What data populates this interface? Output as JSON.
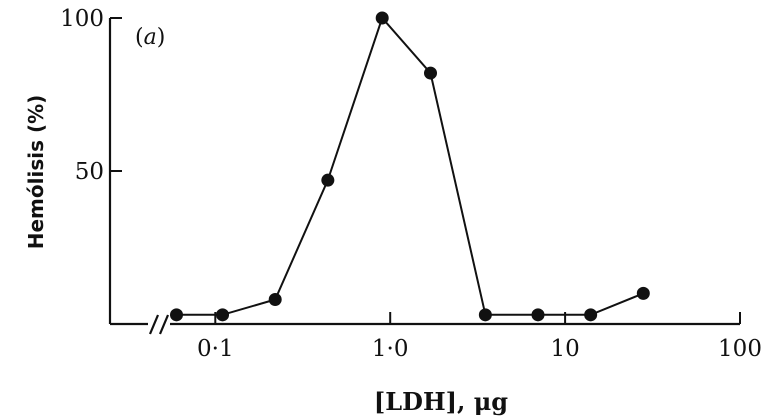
{
  "chart_data": {
    "type": "line",
    "panel_label_open": "(",
    "panel_label_letter": "a",
    "panel_label_close": ")",
    "xlabel": "[LDH], μg",
    "ylabel": "Hemólisis (%)",
    "x_scale": "log",
    "xlim": [
      0.025,
      100
    ],
    "ylim": [
      0,
      100
    ],
    "x_axis_break": true,
    "grid": false,
    "legend": "none",
    "x_ticks": [
      {
        "value": 0.1,
        "label": "0·1"
      },
      {
        "value": 1.0,
        "label": "1·0"
      },
      {
        "value": 10,
        "label": "10"
      },
      {
        "value": 100,
        "label": "100"
      }
    ],
    "y_ticks": [
      {
        "value": 50,
        "label": "50"
      },
      {
        "value": 100,
        "label": "100"
      }
    ],
    "series": [
      {
        "points": [
          {
            "x": 0.06,
            "y": 3
          },
          {
            "x": 0.11,
            "y": 3
          },
          {
            "x": 0.22,
            "y": 8
          },
          {
            "x": 0.44,
            "y": 47
          },
          {
            "x": 0.9,
            "y": 100
          },
          {
            "x": 1.7,
            "y": 82
          },
          {
            "x": 3.5,
            "y": 3
          },
          {
            "x": 7,
            "y": 3
          },
          {
            "x": 14,
            "y": 3
          },
          {
            "x": 28,
            "y": 10
          }
        ]
      }
    ]
  }
}
